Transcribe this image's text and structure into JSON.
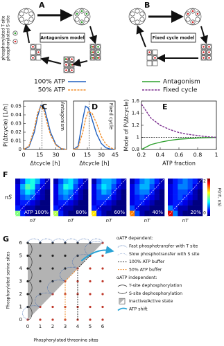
{
  "panel_a": {
    "label": "A",
    "model": "Antagonism model",
    "legend": [
      "phosphorylated T-site",
      "phosphorylated S-site"
    ]
  },
  "panel_b": {
    "label": "B",
    "model": "Fixed cycle model"
  },
  "chart_data": [
    {
      "type": "line",
      "label": "C",
      "annotation": "Antagonism",
      "ylabel": "P(Δtcycle) [1/h]",
      "xlabel": "Δtcycle [h]",
      "x": [
        0,
        5,
        10,
        13,
        16,
        19,
        22,
        25,
        30,
        35,
        40
      ],
      "xlim": [
        0,
        40
      ],
      "xticks": [
        0,
        15,
        30
      ],
      "ylim": [
        0,
        0.056
      ],
      "yticks": [
        0,
        0.01,
        0.02,
        0.03,
        0.04,
        0.05
      ],
      "reference_x": 17,
      "series": [
        {
          "name": "100% ATP",
          "color": "#1f5fbf",
          "dash": false,
          "values": [
            0,
            0.003,
            0.02,
            0.038,
            0.051,
            0.049,
            0.035,
            0.02,
            0.006,
            0.001,
            0
          ]
        },
        {
          "name": "50% ATP",
          "color": "#f28e2b",
          "dash": true,
          "values": [
            0,
            0.004,
            0.024,
            0.042,
            0.05,
            0.045,
            0.03,
            0.017,
            0.005,
            0.001,
            0
          ]
        }
      ]
    },
    {
      "type": "line",
      "label": "D",
      "annotation": "Fixed cycle",
      "xlabel": "Δtcycle [h]",
      "x": [
        0,
        5,
        10,
        13,
        16,
        20,
        25,
        30,
        35,
        40,
        45
      ],
      "xlim": [
        0,
        45
      ],
      "xticks": [
        0,
        15,
        30,
        45
      ],
      "ylim": [
        0,
        0.056
      ],
      "reference_x": 17,
      "series": [
        {
          "color": "#1f5fbf",
          "dash": false,
          "values": [
            0,
            0.004,
            0.035,
            0.05,
            0.048,
            0.035,
            0.018,
            0.007,
            0.002,
            0.0005,
            0
          ]
        },
        {
          "color": "#f28e2b",
          "dash": true,
          "values": [
            0,
            0.002,
            0.02,
            0.035,
            0.044,
            0.042,
            0.03,
            0.015,
            0.006,
            0.002,
            0
          ]
        }
      ]
    },
    {
      "type": "line",
      "label": "E",
      "ylabel": "Mode of P(Δtcycle)",
      "xlabel": "ATP fraction",
      "x": [
        0.2,
        0.3,
        0.4,
        0.5,
        0.6,
        0.7,
        0.8,
        0.9,
        1
      ],
      "xlim": [
        0.2,
        1
      ],
      "xticks": [
        0.2,
        0.4,
        0.6,
        0.8,
        1
      ],
      "ylim": [
        0.8,
        1.6
      ],
      "yticks": [
        0.8,
        1,
        1.2,
        1.4,
        1.6
      ],
      "reference_y": 1,
      "series": [
        {
          "name": "Antagonism",
          "color": "#2ca02c",
          "dash": false,
          "values": [
            0.8,
            0.88,
            0.92,
            0.95,
            0.97,
            0.98,
            0.99,
            0.995,
            1
          ]
        },
        {
          "name": "Fixed cycle",
          "color": "#7b2d8e",
          "dash": true,
          "values": [
            1.55,
            1.32,
            1.2,
            1.13,
            1.08,
            1.05,
            1.03,
            1.01,
            1
          ]
        }
      ]
    },
    {
      "type": "heatmap",
      "label": "F",
      "ylabel": "nS",
      "xlabel": "nT",
      "colorbar_label": "P(nT, nS)",
      "zlim": [
        0,
        0.2
      ],
      "zticks": [
        0,
        0.2
      ],
      "panels": [
        {
          "label": "ATP 100%",
          "values": [
            [
              0.1,
              0.03,
              0.01,
              0,
              0,
              0,
              0
            ],
            [
              0.03,
              0.02,
              0.01,
              0.01,
              0,
              0,
              0
            ],
            [
              0.02,
              0.03,
              0.03,
              0.02,
              0.01,
              0,
              0
            ],
            [
              0.02,
              0.04,
              0.05,
              0.04,
              0.02,
              0.01,
              0
            ],
            [
              0.02,
              0.05,
              0.07,
              0.06,
              0.03,
              0.01,
              0
            ],
            [
              0.02,
              0.06,
              0.09,
              0.08,
              0.04,
              0.02,
              0.01
            ],
            [
              0.01,
              0.04,
              0.07,
              0.08,
              0.06,
              0.03,
              0.01
            ]
          ]
        },
        {
          "label": "80%",
          "values": [
            [
              0.11,
              0.03,
              0.01,
              0,
              0,
              0,
              0
            ],
            [
              0.03,
              0.02,
              0.01,
              0.01,
              0,
              0,
              0
            ],
            [
              0.02,
              0.03,
              0.03,
              0.02,
              0.01,
              0,
              0
            ],
            [
              0.02,
              0.04,
              0.05,
              0.04,
              0.02,
              0.01,
              0
            ],
            [
              0.02,
              0.05,
              0.06,
              0.05,
              0.03,
              0.01,
              0
            ],
            [
              0.02,
              0.05,
              0.08,
              0.07,
              0.04,
              0.02,
              0.01
            ],
            [
              0.01,
              0.04,
              0.06,
              0.07,
              0.05,
              0.03,
              0.01
            ]
          ]
        },
        {
          "label": "60%",
          "values": [
            [
              0.13,
              0.03,
              0.01,
              0,
              0,
              0,
              0
            ],
            [
              0.03,
              0.02,
              0.01,
              0.01,
              0,
              0,
              0
            ],
            [
              0.02,
              0.03,
              0.03,
              0.02,
              0.01,
              0,
              0
            ],
            [
              0.02,
              0.04,
              0.04,
              0.04,
              0.02,
              0.01,
              0
            ],
            [
              0.02,
              0.04,
              0.06,
              0.05,
              0.03,
              0.01,
              0
            ],
            [
              0.02,
              0.05,
              0.07,
              0.06,
              0.04,
              0.02,
              0.01
            ],
            [
              0.01,
              0.04,
              0.06,
              0.06,
              0.05,
              0.03,
              0.01
            ]
          ]
        },
        {
          "label": "40%",
          "values": [
            [
              0.15,
              0.04,
              0.01,
              0,
              0,
              0,
              0
            ],
            [
              0.04,
              0.02,
              0.01,
              0.01,
              0,
              0,
              0
            ],
            [
              0.02,
              0.03,
              0.03,
              0.02,
              0.01,
              0,
              0
            ],
            [
              0.02,
              0.03,
              0.04,
              0.03,
              0.02,
              0.01,
              0
            ],
            [
              0.02,
              0.04,
              0.05,
              0.05,
              0.03,
              0.01,
              0
            ],
            [
              0.02,
              0.04,
              0.06,
              0.06,
              0.04,
              0.02,
              0.01
            ],
            [
              0.01,
              0.03,
              0.05,
              0.06,
              0.05,
              0.03,
              0.01
            ]
          ]
        },
        {
          "label": "20%",
          "values": [
            [
              0.18,
              0.05,
              0.01,
              0,
              0,
              0,
              0
            ],
            [
              0.05,
              0.03,
              0.01,
              0.01,
              0,
              0,
              0
            ],
            [
              0.02,
              0.03,
              0.03,
              0.02,
              0.01,
              0,
              0
            ],
            [
              0.02,
              0.03,
              0.04,
              0.03,
              0.02,
              0.01,
              0
            ],
            [
              0.02,
              0.03,
              0.04,
              0.04,
              0.03,
              0.01,
              0
            ],
            [
              0.02,
              0.03,
              0.05,
              0.05,
              0.04,
              0.02,
              0.01
            ],
            [
              0.01,
              0.03,
              0.04,
              0.05,
              0.04,
              0.03,
              0.01
            ]
          ]
        }
      ]
    }
  ],
  "panel_g": {
    "label": "G",
    "ylabel": "Phosphorylated serine sites",
    "xlabel": "Phosphorylated threonine sites",
    "ticks": [
      0,
      1,
      2,
      3,
      4,
      5,
      6
    ],
    "legend": [
      "αATP dependent:",
      "Fast phosphotransfer with T site",
      "Slow phosphotransfer with S site",
      "100% ATP buffer",
      "50% ATP buffer",
      "αATP independent:",
      "T-site dephosphorylation",
      "S-site dephosphorylation",
      "Inactive/Active state",
      "ATP shift"
    ]
  }
}
